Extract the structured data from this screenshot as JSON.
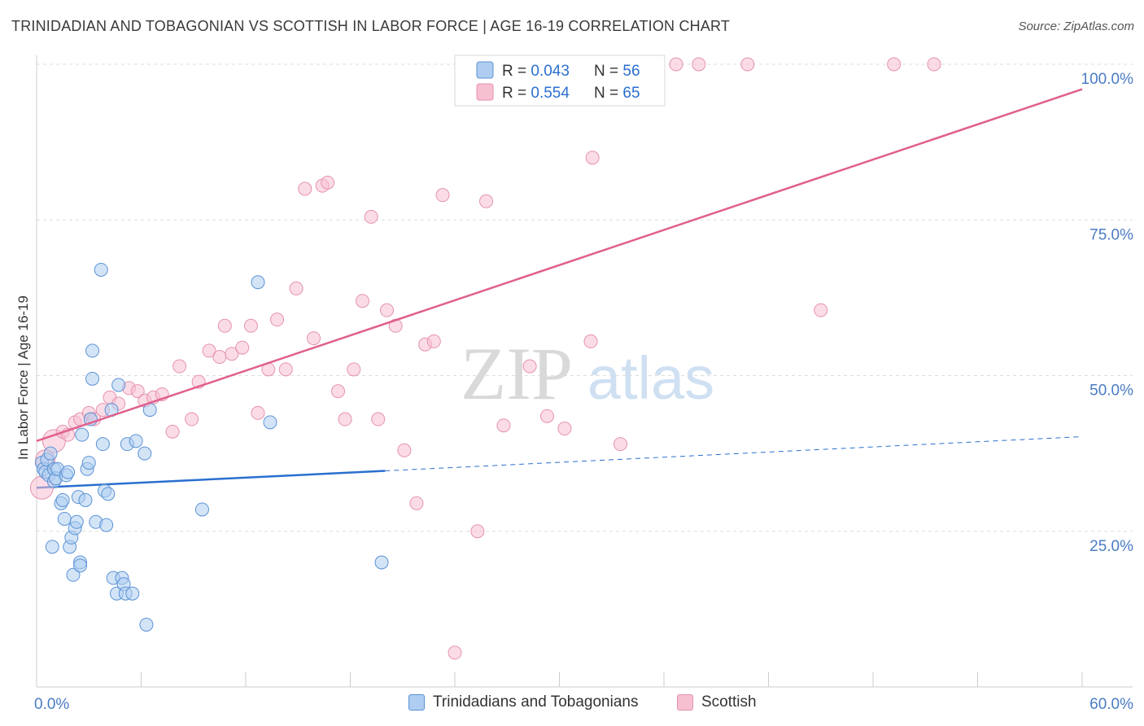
{
  "title": "TRINIDADIAN AND TOBAGONIAN VS SCOTTISH IN LABOR FORCE | AGE 16-19 CORRELATION CHART",
  "source": "Source: ZipAtlas.com",
  "watermark": {
    "zip": "ZIP",
    "atlas": "atlas"
  },
  "colors": {
    "blue_fill": "#aecdf0",
    "blue_stroke": "#5b93d6",
    "blue_line": "#2a6fcf",
    "pink_fill": "#f7c0d1",
    "pink_stroke": "#e592ae",
    "pink_line": "#e0608c",
    "axis_label": "#4a7cc4",
    "grid": "#dddddd"
  },
  "legend_top": [
    {
      "r_label": "R = ",
      "r_value": "0.043",
      "n_label": "N = ",
      "n_value": "56"
    },
    {
      "r_label": "R = ",
      "r_value": "0.554",
      "n_label": "N = ",
      "n_value": "65"
    }
  ],
  "legend_bottom": [
    {
      "label": "Trinidadians and Tobagonians"
    },
    {
      "label": "Scottish"
    }
  ],
  "chart_data": {
    "type": "scatter",
    "title": "TRINIDADIAN AND TOBAGONIAN VS SCOTTISH IN LABOR FORCE | AGE 16-19 CORRELATION CHART",
    "xlabel": "",
    "ylabel": "In Labor Force | Age 16-19",
    "xlim": [
      0,
      60
    ],
    "ylim": [
      0,
      100
    ],
    "x_tick_labels": [
      {
        "value": 0,
        "label": "0.0%"
      },
      {
        "value": 60,
        "label": "60.0%"
      }
    ],
    "y_tick_labels": [
      {
        "value": 25,
        "label": "25.0%"
      },
      {
        "value": 50,
        "label": "50.0%"
      },
      {
        "value": 75,
        "label": "75.0%"
      },
      {
        "value": 100,
        "label": "100.0%"
      }
    ],
    "grid": true,
    "legend_position": "top-center",
    "series": [
      {
        "name": "Trinidadians and Tobagonians",
        "r": 0.043,
        "n": 56,
        "trend": {
          "x": [
            0,
            20
          ],
          "y": [
            32.0,
            34.7
          ],
          "extended_to": {
            "x": 60,
            "y": 40.2
          }
        },
        "points": [
          [
            0.3,
            36
          ],
          [
            0.4,
            35
          ],
          [
            0.5,
            34.5
          ],
          [
            0.6,
            36.5
          ],
          [
            0.7,
            34
          ],
          [
            0.8,
            37.5
          ],
          [
            0.9,
            22.5
          ],
          [
            1.0,
            35
          ],
          [
            1.0,
            33
          ],
          [
            1.1,
            33.5
          ],
          [
            1.2,
            35
          ],
          [
            1.4,
            29.5
          ],
          [
            1.5,
            30
          ],
          [
            1.6,
            27
          ],
          [
            1.7,
            34
          ],
          [
            1.8,
            34.5
          ],
          [
            1.9,
            22.5
          ],
          [
            2.0,
            24
          ],
          [
            2.1,
            18
          ],
          [
            2.2,
            25.5
          ],
          [
            2.3,
            26.5
          ],
          [
            2.4,
            30.5
          ],
          [
            2.5,
            20
          ],
          [
            2.5,
            19.5
          ],
          [
            2.6,
            40.5
          ],
          [
            2.8,
            30
          ],
          [
            2.9,
            35
          ],
          [
            3.0,
            36
          ],
          [
            3.1,
            43
          ],
          [
            3.2,
            54
          ],
          [
            3.2,
            49.5
          ],
          [
            3.4,
            26.5
          ],
          [
            3.7,
            67
          ],
          [
            3.8,
            39
          ],
          [
            3.9,
            31.5
          ],
          [
            4.0,
            26
          ],
          [
            4.1,
            31
          ],
          [
            4.3,
            44.5
          ],
          [
            4.4,
            17.5
          ],
          [
            4.6,
            15
          ],
          [
            4.7,
            48.5
          ],
          [
            4.9,
            17.5
          ],
          [
            5.0,
            16.5
          ],
          [
            5.1,
            15
          ],
          [
            5.2,
            39
          ],
          [
            5.5,
            15
          ],
          [
            5.7,
            39.5
          ],
          [
            6.2,
            37.5
          ],
          [
            6.3,
            10
          ],
          [
            6.5,
            44.5
          ],
          [
            9.5,
            28.5
          ],
          [
            12.7,
            65
          ],
          [
            13.4,
            42.5
          ],
          [
            19.8,
            20
          ]
        ]
      },
      {
        "name": "Scottish",
        "r": 0.554,
        "n": 65,
        "trend": {
          "x": [
            0,
            60
          ],
          "y": [
            39.5,
            96.0
          ]
        },
        "points": [
          [
            0.3,
            32
          ],
          [
            0.5,
            36.5
          ],
          [
            1.0,
            39.5
          ],
          [
            1.5,
            41
          ],
          [
            1.8,
            40.5
          ],
          [
            2.2,
            42.5
          ],
          [
            2.5,
            43
          ],
          [
            3.0,
            44
          ],
          [
            3.3,
            43
          ],
          [
            3.8,
            44.5
          ],
          [
            4.2,
            46.5
          ],
          [
            4.7,
            45.5
          ],
          [
            5.3,
            48
          ],
          [
            5.8,
            47.5
          ],
          [
            6.2,
            46
          ],
          [
            6.7,
            46.5
          ],
          [
            7.2,
            47
          ],
          [
            7.8,
            41
          ],
          [
            8.2,
            51.5
          ],
          [
            8.9,
            43
          ],
          [
            9.3,
            49
          ],
          [
            9.9,
            54
          ],
          [
            10.5,
            53
          ],
          [
            10.8,
            58
          ],
          [
            11.2,
            53.5
          ],
          [
            11.8,
            54.5
          ],
          [
            12.3,
            58
          ],
          [
            12.7,
            44
          ],
          [
            13.3,
            51
          ],
          [
            13.8,
            59
          ],
          [
            14.3,
            51
          ],
          [
            14.9,
            64
          ],
          [
            15.4,
            80
          ],
          [
            15.9,
            56
          ],
          [
            16.4,
            80.5
          ],
          [
            16.7,
            81
          ],
          [
            17.3,
            47.5
          ],
          [
            17.7,
            43
          ],
          [
            18.2,
            51
          ],
          [
            18.7,
            62
          ],
          [
            19.2,
            75.5
          ],
          [
            19.6,
            43
          ],
          [
            20.1,
            60.5
          ],
          [
            20.6,
            58
          ],
          [
            21.1,
            38
          ],
          [
            21.8,
            29.5
          ],
          [
            22.3,
            55
          ],
          [
            22.8,
            55.5
          ],
          [
            23.3,
            79
          ],
          [
            24.0,
            5.5
          ],
          [
            24.8,
            100
          ],
          [
            25.3,
            25
          ],
          [
            25.8,
            78
          ],
          [
            26.8,
            42
          ],
          [
            28.3,
            51.5
          ],
          [
            29.3,
            43.5
          ],
          [
            30.3,
            41.5
          ],
          [
            31.8,
            55.5
          ],
          [
            31.9,
            85
          ],
          [
            33.5,
            39
          ],
          [
            36.7,
            100
          ],
          [
            38.0,
            100
          ],
          [
            40.8,
            100
          ],
          [
            45.0,
            60.5
          ],
          [
            49.2,
            100
          ],
          [
            51.5,
            100
          ]
        ]
      }
    ]
  }
}
